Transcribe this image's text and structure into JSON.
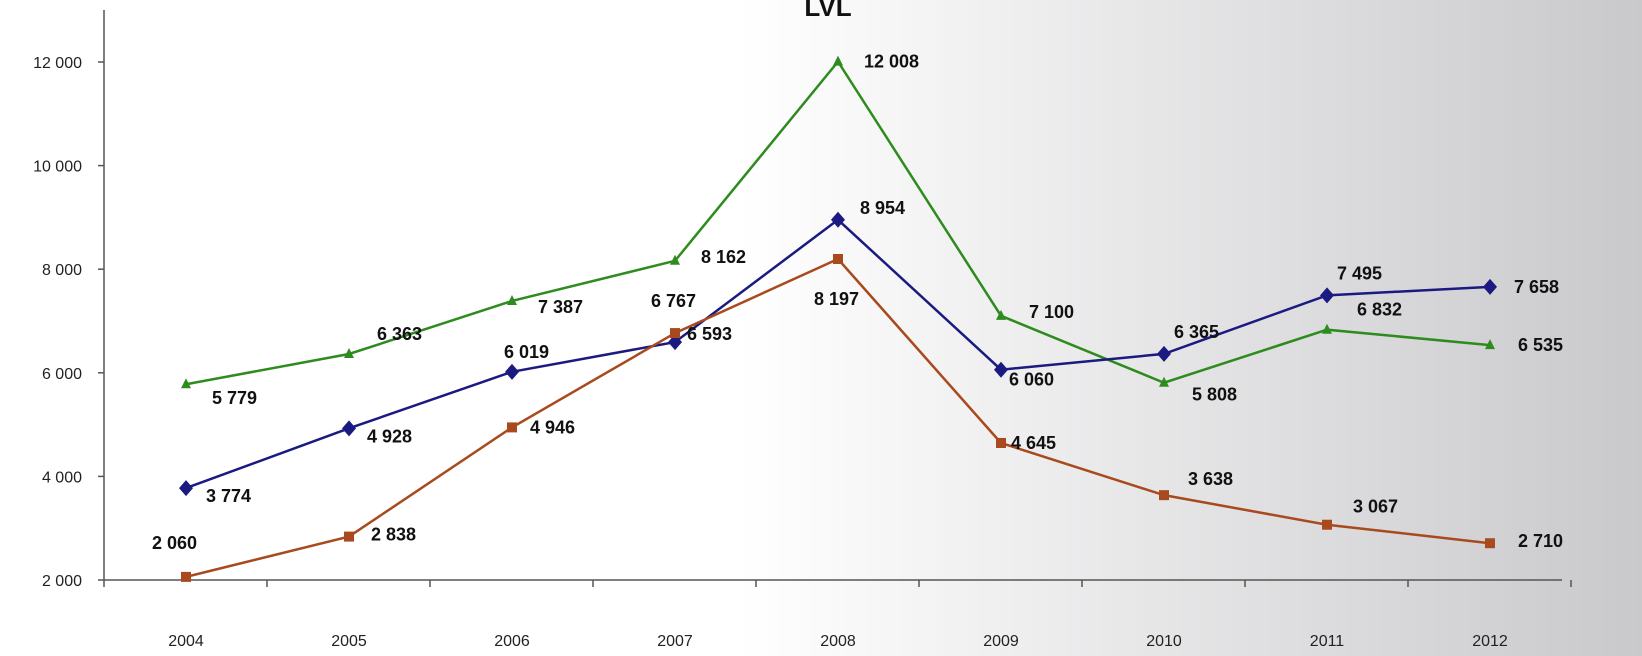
{
  "chart_data": {
    "type": "line",
    "title": "LVL",
    "xlabel": "",
    "ylabel": "",
    "categories": [
      "2004",
      "2005",
      "2006",
      "2007",
      "2008",
      "2009",
      "2010",
      "2011",
      "2012"
    ],
    "ylim": [
      2000,
      12000
    ],
    "yticks": [
      2000,
      4000,
      6000,
      8000,
      10000,
      12000
    ],
    "ytick_labels": [
      "2 000",
      "4 000",
      "6 000",
      "8 000",
      "10 000",
      "12 000"
    ],
    "grid": false,
    "legend": "none",
    "series": [
      {
        "color": "#2e8b1e",
        "marker": "triangle",
        "values": [
          5779,
          6363,
          7387,
          8162,
          12008,
          7100,
          5808,
          6832,
          6535
        ],
        "labels": [
          "5 779",
          "6 363",
          "7 387",
          "8 162",
          "12 008",
          "7 100",
          "5 808",
          "6 832",
          "6 535"
        ]
      },
      {
        "color": "#1a1a80",
        "marker": "diamond",
        "values": [
          3774,
          4928,
          6019,
          6593,
          8954,
          6060,
          6365,
          7495,
          7658
        ],
        "labels": [
          "3 774",
          "4 928",
          "6 019",
          "6 593",
          "8 954",
          "6 060",
          "6 365",
          "7 495",
          "7 658"
        ]
      },
      {
        "color": "#a84a1e",
        "marker": "square",
        "values": [
          2060,
          2838,
          4946,
          6767,
          8197,
          4645,
          3638,
          3067,
          2710
        ],
        "labels": [
          "2 060",
          "2 838",
          "4 946",
          "6 767",
          "8 197",
          "4 645",
          "3 638",
          "3 067",
          "2 710"
        ]
      }
    ]
  }
}
